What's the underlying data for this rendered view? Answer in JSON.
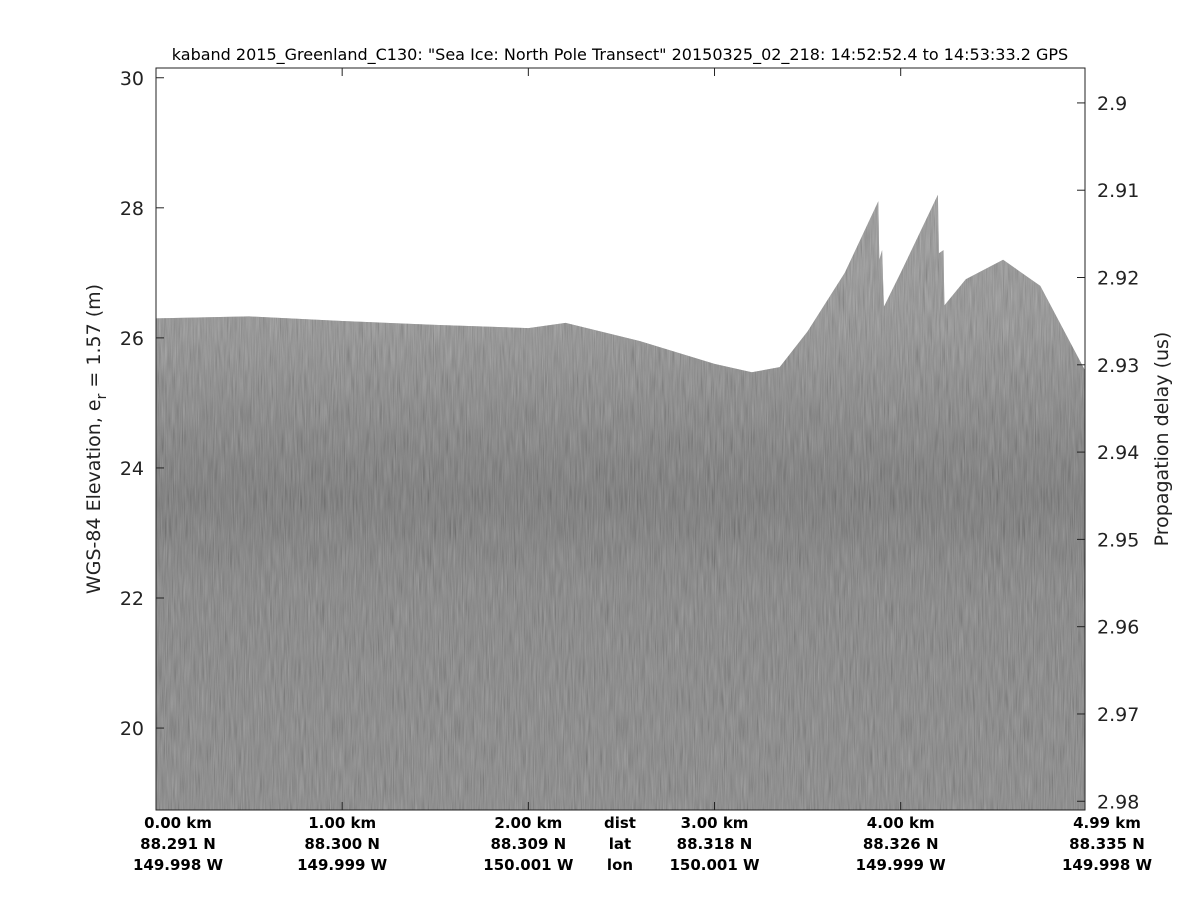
{
  "chart_data": {
    "type": "heatmap",
    "title": "kaband 2015_Greenland_C130: \"Sea Ice: North Pole Transect\"  20150325_02_218: 14:52:52.4 to 14:53:33.2 GPS",
    "ylabel": "WGS-84 Elevation, e",
    "ylabel_sub": "r",
    "ylabel_tail": " = 1.57 (m)",
    "y2label": "Propagation delay (us)",
    "ylim": [
      18.74,
      30.15
    ],
    "xlim_km": [
      0,
      4.99
    ],
    "yticks": [
      20,
      22,
      24,
      26,
      28,
      30
    ],
    "y2ticks": [
      "2.9",
      "2.91",
      "2.92",
      "2.93",
      "2.94",
      "2.95",
      "2.96",
      "2.97",
      "2.98"
    ],
    "y2lim": [
      2.896,
      2.981
    ],
    "colormap": "gray",
    "x_rows": {
      "dist": {
        "label": "dist",
        "values": [
          "0.00 km",
          "1.00 km",
          "2.00 km",
          "3.00 km",
          "4.00 km",
          "4.99 km"
        ]
      },
      "lat": {
        "label": "lat",
        "values": [
          "88.291 N",
          "88.300 N",
          "88.309 N",
          "88.318 N",
          "88.326 N",
          "88.335 N"
        ]
      },
      "lon": {
        "label": "lon",
        "values": [
          "149.998 W",
          "149.999 W",
          "150.001 W",
          "150.001 W",
          "149.999 W",
          "149.998 W"
        ]
      }
    },
    "xtick_km": [
      0,
      1,
      2,
      3,
      4,
      4.99
    ],
    "surface_profile": {
      "x_km": [
        0,
        0.5,
        1.0,
        1.5,
        2.0,
        2.2,
        2.6,
        3.0,
        3.2,
        3.35,
        3.5,
        3.7,
        3.88,
        3.885,
        3.9,
        3.91,
        4.0,
        4.2,
        4.205,
        4.23,
        4.235,
        4.35,
        4.55,
        4.75,
        4.99
      ],
      "elevation_m": [
        26.3,
        26.33,
        26.26,
        26.2,
        26.15,
        26.23,
        25.95,
        25.6,
        25.47,
        25.55,
        26.1,
        27.0,
        28.1,
        27.2,
        27.35,
        26.48,
        27.0,
        28.2,
        27.3,
        27.35,
        26.5,
        26.9,
        27.2,
        26.8,
        25.5
      ]
    },
    "bright_layer_m": 23.6
  }
}
